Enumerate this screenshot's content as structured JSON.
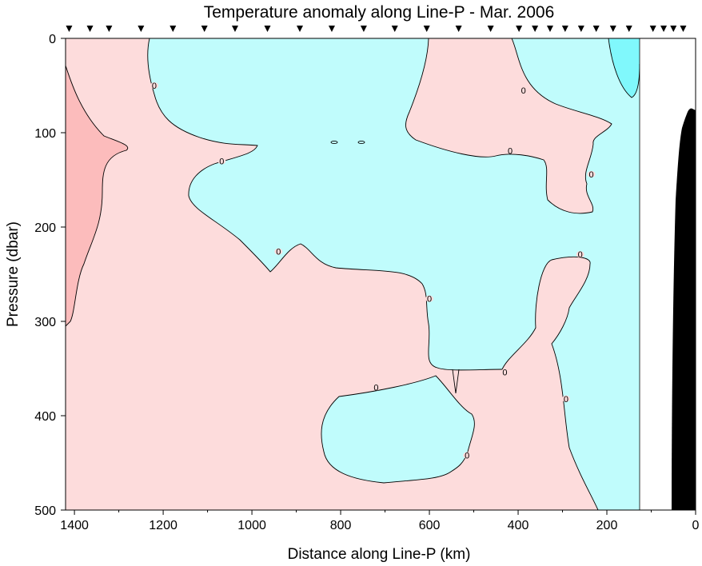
{
  "chart_data": {
    "type": "contour",
    "title": "Temperature anomaly along Line-P - Mar. 2006",
    "xlabel": "Distance along Line-P (km)",
    "ylabel": "Pressure (dbar)",
    "xlim": [
      1420,
      0
    ],
    "ylim": [
      0,
      500
    ],
    "x_reversed": true,
    "y_reversed": true,
    "x_ticks": [
      1400,
      1200,
      1000,
      800,
      600,
      400,
      200,
      0
    ],
    "y_ticks": [
      0,
      100,
      200,
      300,
      400,
      500
    ],
    "station_markers_km": [
      1412,
      1365,
      1322,
      1250,
      1178,
      1107,
      1038,
      965,
      892,
      820,
      748,
      678,
      606,
      534,
      462,
      398,
      362,
      328,
      294,
      258,
      224,
      186,
      150,
      96,
      72,
      50,
      28
    ],
    "contour_level": 0,
    "contour_labels": [
      {
        "text": "0",
        "x": 1220,
        "y": 50
      },
      {
        "text": "0",
        "x": 1068,
        "y": 130
      },
      {
        "text": "0",
        "x": 940,
        "y": 226
      },
      {
        "text": "0",
        "x": 600,
        "y": 276
      },
      {
        "text": "0",
        "x": 720,
        "y": 370
      },
      {
        "text": "0",
        "x": 430,
        "y": 354
      },
      {
        "text": "0",
        "x": 515,
        "y": 442
      },
      {
        "text": "0",
        "x": 292,
        "y": 382
      },
      {
        "text": "0",
        "x": 260,
        "y": 229
      },
      {
        "text": "0",
        "x": 418,
        "y": 119
      },
      {
        "text": "0",
        "x": 388,
        "y": 55
      },
      {
        "text": "0",
        "x": 235,
        "y": 144
      }
    ],
    "fill_colors": {
      "positive": "#fddcdc",
      "strong_positive": "#fcbcbc",
      "negative": "#c0fcfc",
      "strong_negative": "#80f8fc",
      "no_data": "#ffffff",
      "bathymetry": "#000000"
    }
  }
}
